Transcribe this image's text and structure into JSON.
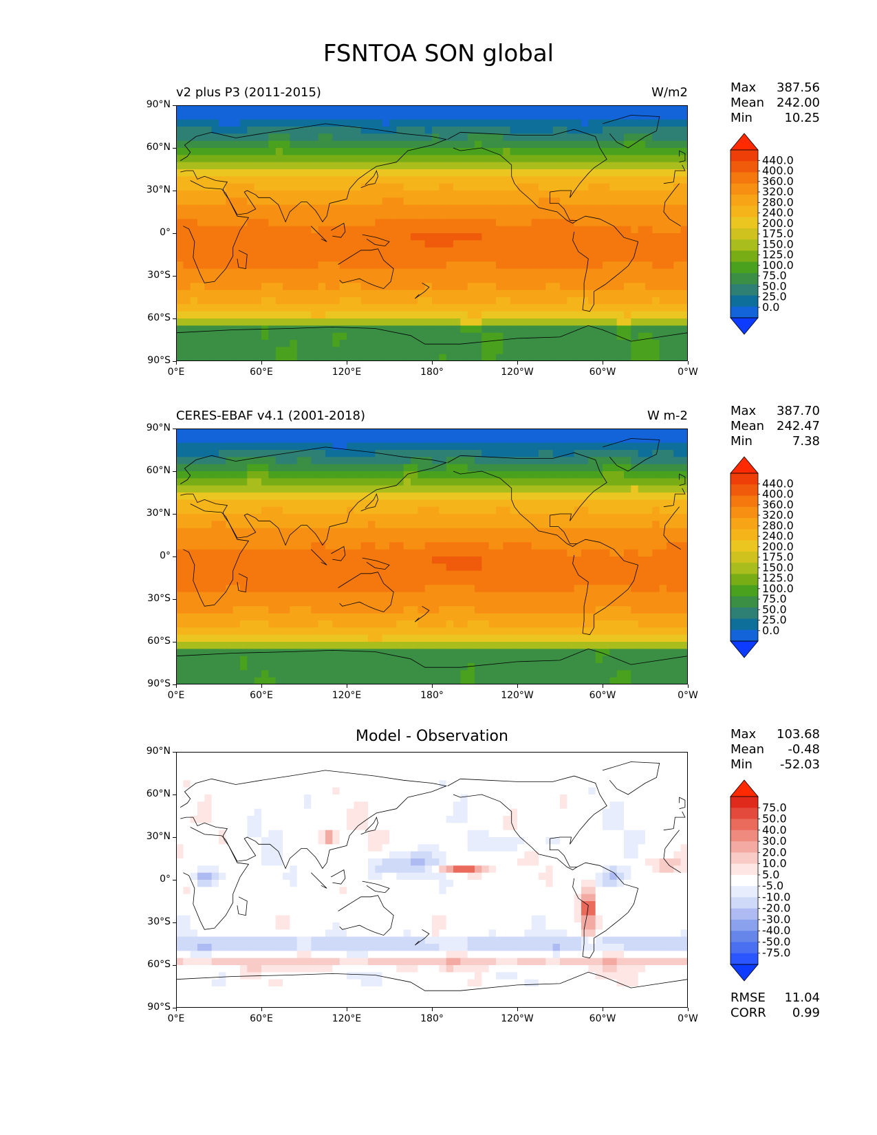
{
  "figure": {
    "title": "FSNTOA SON global"
  },
  "colors": {
    "abs": [
      "#0d3bff",
      "#1264d8",
      "#0e6f9a",
      "#2e7f74",
      "#3a8f45",
      "#49a11e",
      "#79ad16",
      "#a9bd1c",
      "#cfc21e",
      "#ecc620",
      "#f5b51a",
      "#f7a416",
      "#f79012",
      "#f4780e",
      "#f05a0b",
      "#ee3f08",
      "#ff2a00"
    ],
    "diff": [
      "#0d3bff",
      "#2b55ff",
      "#4a6ff0",
      "#6686ea",
      "#8aa1ee",
      "#aebbf2",
      "#cfd9f8",
      "#e7edfc",
      "#ffffff",
      "#fde6e4",
      "#f9cbc6",
      "#f3aaa2",
      "#ef8a7f",
      "#ea6a5c",
      "#e44a3b",
      "#e02a1c",
      "#ff2a00"
    ],
    "land": "#000000"
  },
  "panels": [
    {
      "id": "model",
      "left_label": "v2 plus P3 (2011-2015)",
      "right_label": "W/m2",
      "center_label": "",
      "stats": [
        {
          "k": "Max",
          "v": "387.56"
        },
        {
          "k": "Mean",
          "v": "242.00"
        },
        {
          "k": "Min",
          "v": "10.25"
        }
      ],
      "colorbar": {
        "scheme": "abs",
        "labels": [
          "440.0",
          "400.0",
          "360.0",
          "320.0",
          "280.0",
          "240.0",
          "200.0",
          "175.0",
          "150.0",
          "125.0",
          "100.0",
          "75.0",
          "50.0",
          "25.0",
          "0.0"
        ]
      },
      "footer": []
    },
    {
      "id": "obs",
      "left_label": "CERES-EBAF v4.1 (2001-2018)",
      "right_label": "W m-2",
      "center_label": "",
      "stats": [
        {
          "k": "Max",
          "v": "387.70"
        },
        {
          "k": "Mean",
          "v": "242.47"
        },
        {
          "k": "Min",
          "v": "7.38"
        }
      ],
      "colorbar": {
        "scheme": "abs",
        "labels": [
          "440.0",
          "400.0",
          "360.0",
          "320.0",
          "280.0",
          "240.0",
          "200.0",
          "175.0",
          "150.0",
          "125.0",
          "100.0",
          "75.0",
          "50.0",
          "25.0",
          "0.0"
        ]
      },
      "footer": []
    },
    {
      "id": "diff",
      "left_label": "",
      "right_label": "",
      "center_label": "Model - Observation",
      "stats": [
        {
          "k": "Max",
          "v": "103.68"
        },
        {
          "k": "Mean",
          "v": "-0.48"
        },
        {
          "k": "Min",
          "v": "-52.03"
        }
      ],
      "colorbar": {
        "scheme": "diff",
        "labels": [
          "75.0",
          "50.0",
          "40.0",
          "30.0",
          "20.0",
          "10.0",
          "5.0",
          "-5.0",
          "-10.0",
          "-20.0",
          "-30.0",
          "-40.0",
          "-50.0",
          "-75.0"
        ]
      },
      "footer": [
        {
          "k": "RMSE",
          "v": "11.04"
        },
        {
          "k": "CORR",
          "v": "0.99"
        }
      ]
    }
  ],
  "axes": {
    "lat_ticks": [
      "90°N",
      "60°N",
      "30°N",
      "0°",
      "30°S",
      "60°S",
      "90°S"
    ],
    "lon_ticks": [
      "0°E",
      "60°E",
      "120°E",
      "180°",
      "120°W",
      "60°W",
      "0°W"
    ]
  }
}
